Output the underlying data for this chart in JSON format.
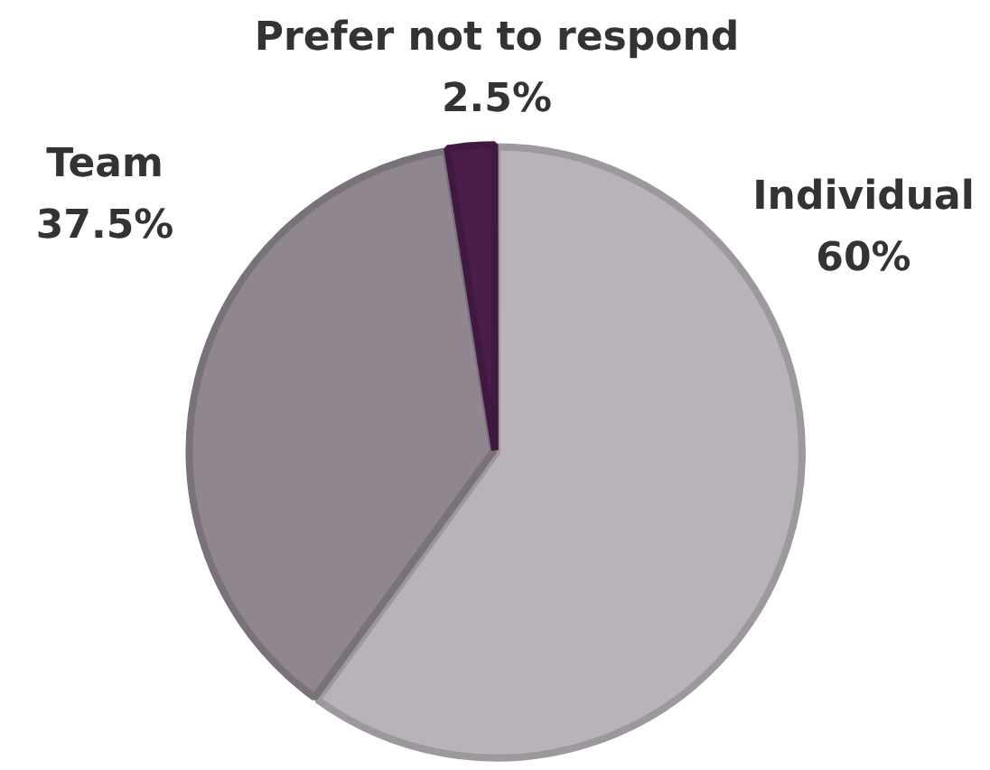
{
  "chart_data": {
    "type": "pie",
    "categories": [
      "Individual",
      "Team",
      "Prefer not to respond"
    ],
    "values": [
      60,
      37.5,
      2.5
    ],
    "value_labels": [
      "60%",
      "37.5%",
      "2.5%"
    ],
    "colors": [
      "#b9b3b9",
      "#8f868f",
      "#4b1d4b"
    ],
    "legend": false
  }
}
